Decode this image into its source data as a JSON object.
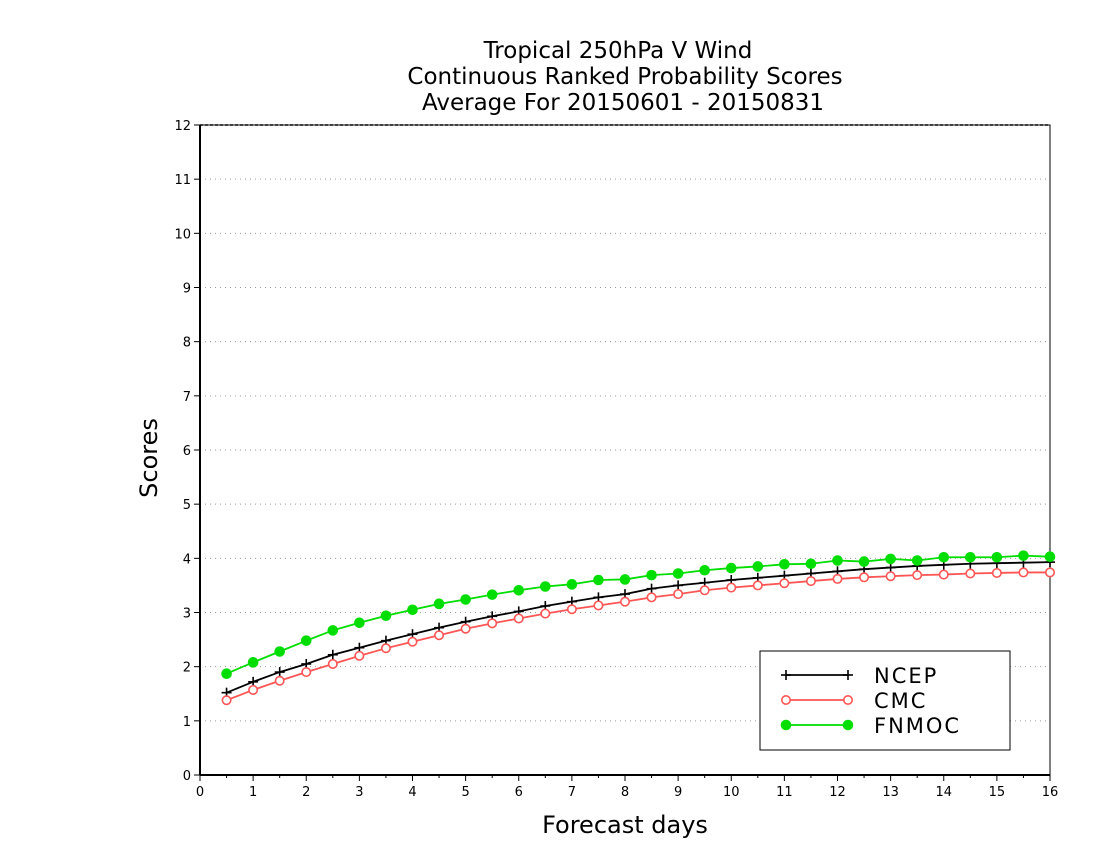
{
  "chart_data": {
    "type": "line",
    "title_lines": [
      "Tropical 250hPa V Wind",
      "Continuous Ranked Probability Scores",
      "Average For 20150601 - 20150831"
    ],
    "xlabel": "Forecast days",
    "ylabel": "Scores",
    "xlim": [
      0,
      16
    ],
    "ylim": [
      0,
      12
    ],
    "x_ticks": [
      "0",
      "1",
      "2",
      "3",
      "4",
      "5",
      "6",
      "7",
      "8",
      "9",
      "10",
      "11",
      "12",
      "13",
      "14",
      "15",
      "16"
    ],
    "y_ticks": [
      "0",
      "1",
      "2",
      "3",
      "4",
      "5",
      "6",
      "7",
      "8",
      "9",
      "10",
      "11",
      "12"
    ],
    "grid": "horizontal dotted",
    "legend_position": "bottom-right",
    "x": [
      0.5,
      1,
      1.5,
      2,
      2.5,
      3,
      3.5,
      4,
      4.5,
      5,
      5.5,
      6,
      6.5,
      7,
      7.5,
      8,
      8.5,
      9,
      9.5,
      10,
      10.5,
      11,
      11.5,
      12,
      12.5,
      13,
      13.5,
      14,
      14.5,
      15,
      15.5,
      16
    ],
    "series": [
      {
        "name": "NCEP",
        "color": "#000000",
        "marker": "plus",
        "values": [
          1.52,
          1.72,
          1.9,
          2.05,
          2.22,
          2.35,
          2.48,
          2.6,
          2.72,
          2.83,
          2.93,
          3.02,
          3.12,
          3.2,
          3.28,
          3.34,
          3.44,
          3.5,
          3.55,
          3.6,
          3.64,
          3.68,
          3.72,
          3.76,
          3.8,
          3.83,
          3.86,
          3.88,
          3.9,
          3.91,
          3.92,
          3.93
        ]
      },
      {
        "name": "CMC",
        "color": "#ff5555",
        "marker": "open-circle",
        "values": [
          1.38,
          1.57,
          1.74,
          1.9,
          2.05,
          2.2,
          2.34,
          2.46,
          2.58,
          2.7,
          2.8,
          2.89,
          2.98,
          3.06,
          3.13,
          3.2,
          3.28,
          3.34,
          3.41,
          3.46,
          3.5,
          3.54,
          3.58,
          3.62,
          3.65,
          3.67,
          3.69,
          3.7,
          3.72,
          3.73,
          3.74,
          3.74
        ]
      },
      {
        "name": "FNMOC",
        "color": "#00dd00",
        "marker": "filled-circle",
        "values": [
          1.87,
          2.08,
          2.28,
          2.48,
          2.67,
          2.81,
          2.94,
          3.05,
          3.16,
          3.24,
          3.33,
          3.41,
          3.48,
          3.52,
          3.6,
          3.61,
          3.69,
          3.72,
          3.78,
          3.82,
          3.85,
          3.89,
          3.9,
          3.96,
          3.94,
          3.99,
          3.96,
          4.02,
          4.02,
          4.02,
          4.05,
          4.03
        ]
      }
    ]
  }
}
